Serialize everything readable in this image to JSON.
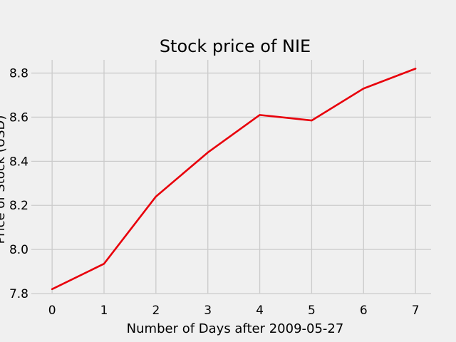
{
  "chart_data": {
    "type": "line",
    "title": "Stock price of NIE",
    "xlabel": "Number of Days after 2009-05-27",
    "ylabel": "Price of Stock (USD)",
    "x": [
      0,
      1,
      2,
      3,
      4,
      5,
      6,
      7
    ],
    "xticks": [
      "0",
      "1",
      "2",
      "3",
      "4",
      "5",
      "6",
      "7"
    ],
    "yticks": [
      "7.8",
      "8.0",
      "8.2",
      "8.4",
      "8.6",
      "8.8"
    ],
    "xlim": [
      -0.4,
      7.3
    ],
    "ylim": [
      7.8,
      8.86
    ],
    "grid": true,
    "series": [
      {
        "color": "#e8000b",
        "values": [
          7.82,
          7.935,
          8.24,
          8.44,
          8.61,
          8.585,
          8.73,
          8.82
        ]
      }
    ]
  }
}
